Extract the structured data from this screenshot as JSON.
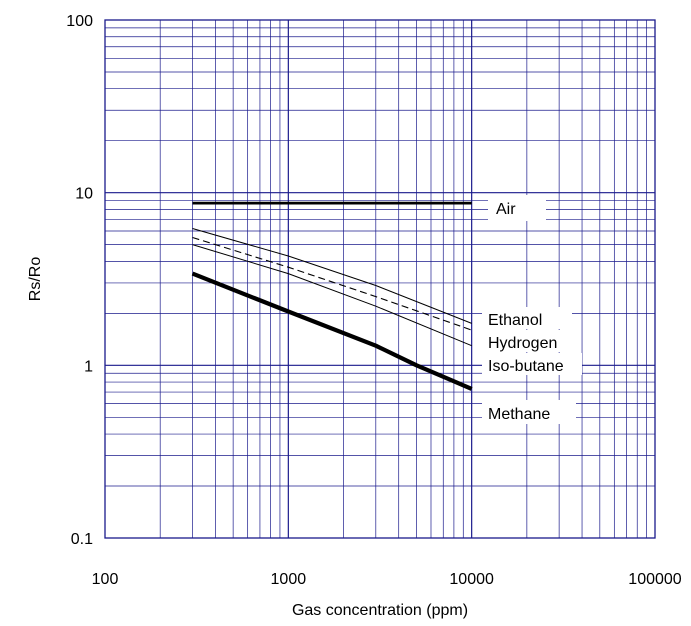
{
  "chart_data": {
    "type": "line",
    "xlabel": "Gas concentration (ppm)",
    "ylabel": "Rs/Ro",
    "x_scale": "log",
    "y_scale": "log",
    "xlim": [
      100,
      100000
    ],
    "ylim": [
      0.1,
      100
    ],
    "x_ticks": [
      "100",
      "1000",
      "10000",
      "100000"
    ],
    "y_ticks": [
      "100",
      "10",
      "1",
      "0.1"
    ],
    "grid": true,
    "grid_color": "#1a1a8c",
    "line_color": "#000000",
    "series": [
      {
        "name": "Air",
        "style": "thick",
        "x": [
          300,
          10000
        ],
        "y": [
          8.7,
          8.7
        ]
      },
      {
        "name": "Ethanol",
        "style": "thin",
        "x": [
          300,
          1000,
          3000,
          10000
        ],
        "y": [
          6.2,
          4.3,
          2.9,
          1.75
        ]
      },
      {
        "name": "Hydrogen",
        "style": "dashed",
        "x": [
          300,
          1000,
          3000,
          10000
        ],
        "y": [
          5.5,
          3.7,
          2.5,
          1.6
        ]
      },
      {
        "name": "Iso-butane",
        "style": "thin",
        "x": [
          300,
          1000,
          3000,
          10000
        ],
        "y": [
          5.0,
          3.4,
          2.2,
          1.3
        ]
      },
      {
        "name": "Methane",
        "style": "extra-thick",
        "x": [
          300,
          1000,
          3000,
          5000,
          10000
        ],
        "y": [
          3.4,
          2.05,
          1.3,
          1.0,
          0.73
        ]
      }
    ]
  }
}
